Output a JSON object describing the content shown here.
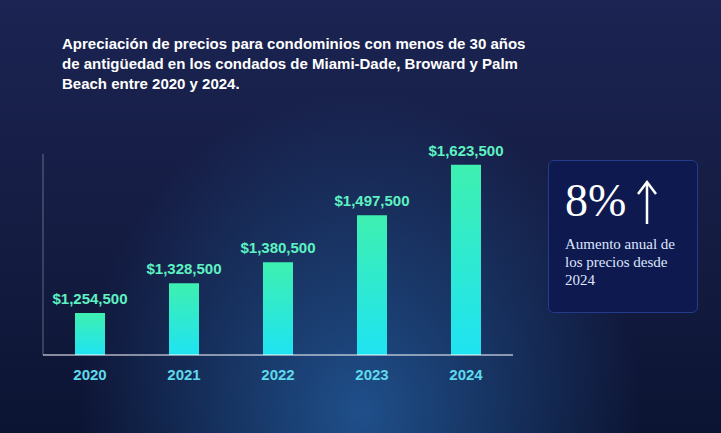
{
  "chart_data": {
    "type": "bar",
    "title": "Apreciación de precios para condominios con menos de 30 años de antigüedad en los condados de Miami-Dade, Broward y Palm Beach entre 2020 y 2024.",
    "categories": [
      "2020",
      "2021",
      "2022",
      "2023",
      "2024"
    ],
    "values": [
      1254500,
      1328500,
      1380500,
      1497500,
      1623500
    ],
    "value_labels": [
      "$1,254,500",
      "$1,328,500",
      "$1,380,500",
      "$1,497,500",
      "$1,623,500"
    ],
    "color": "#3ef0b0",
    "ylim": [
      1150000,
      1650000
    ],
    "data_labels": true,
    "tick_labels": "x",
    "grid": false,
    "annotations": [
      "8%",
      "Aumento anual de los precios desde 2024"
    ]
  }
}
